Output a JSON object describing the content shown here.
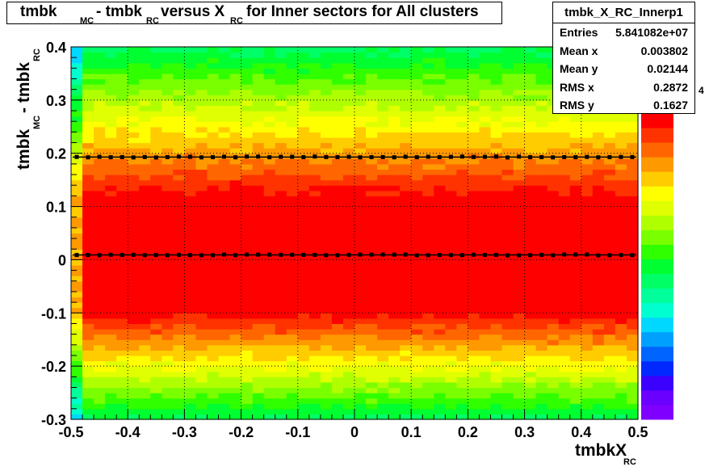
{
  "chart_data": {
    "type": "heatmap",
    "title_parts": [
      "tmbk",
      "MC",
      " - tmbk",
      "RC",
      " versus X",
      "RC",
      " for Inner sectors for All clusters"
    ],
    "xlabel": "tmbkX",
    "xlabel_sub": "RC",
    "ylabel": "tmbk",
    "ylabel_sub1": "MC",
    "ylabel_mid": " - tmbk",
    "ylabel_sub2": "RC",
    "xlim": [
      -0.5,
      0.5
    ],
    "ylim": [
      -0.3,
      0.4
    ],
    "x_ticks": [
      "-0.5",
      "-0.4",
      "-0.3",
      "-0.2",
      "-0.1",
      "0",
      "0.1",
      "0.2",
      "0.3",
      "0.4",
      "0.5"
    ],
    "y_ticks": [
      "-0.3",
      "-0.2",
      "-0.1",
      "0",
      "0.1",
      "0.2",
      "0.3",
      "0.4"
    ],
    "grid": true,
    "z_exponent_label": "4",
    "profile_mean_y": 0.009,
    "upper_band_y": 0.193,
    "palette": [
      "#8000ff",
      "#6a00ff",
      "#3c00ff",
      "#0028ff",
      "#0064ff",
      "#00a0ff",
      "#00d8ff",
      "#00ffd0",
      "#00ff9a",
      "#00ff66",
      "#00ff30",
      "#30ff00",
      "#7aff00",
      "#b0ff00",
      "#e0ff00",
      "#ffff00",
      "#ffcc00",
      "#ff9900",
      "#ff6600",
      "#ff3300",
      "#ff0000"
    ]
  },
  "stats": {
    "name": "tmbk_X_RC_Innerp1",
    "rows": [
      {
        "label": "Entries",
        "value": "5.841082e+07"
      },
      {
        "label": "Mean x",
        "value": "0.003802"
      },
      {
        "label": "Mean y",
        "value": "0.02144"
      },
      {
        "label": "RMS x",
        "value": "0.2872"
      },
      {
        "label": "RMS y",
        "value": "0.1627"
      }
    ]
  }
}
